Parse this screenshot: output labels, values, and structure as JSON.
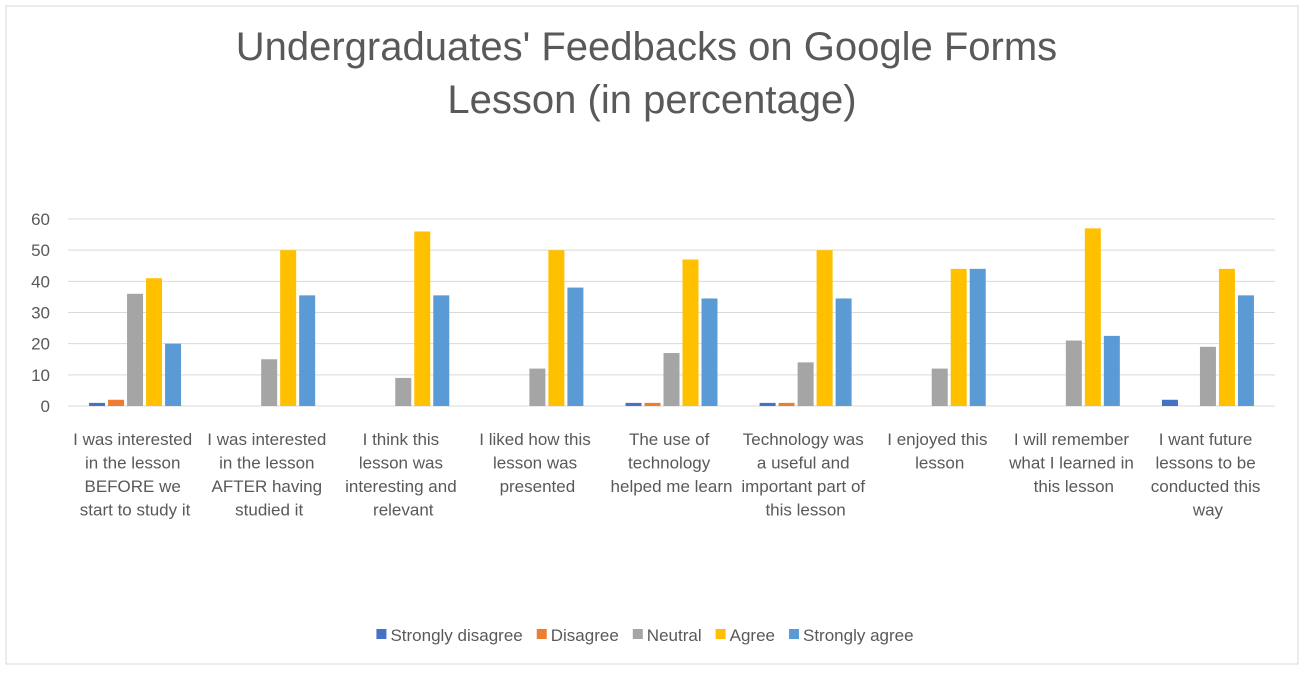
{
  "chart_data": {
    "type": "bar",
    "title": "Undergraduates' Feedbacks on Google Forms Lesson  (in percentage)",
    "categories": [
      "I was interested in the lesson BEFORE we start to study it",
      "I was interested in the lesson AFTER having studied it",
      "I think this lesson was interesting and relevant",
      "I liked how this lesson was presented",
      "The use of technology helped me learn",
      "Technology was a useful and important part of this lesson",
      "I enjoyed this lesson",
      "I will remember what I learned in this lesson",
      "I want future lessons to be conducted this way"
    ],
    "series": [
      {
        "name": "Strongly disagree",
        "color": "#4472c4",
        "values": [
          1,
          0,
          0,
          0,
          1,
          1,
          0,
          0,
          2
        ]
      },
      {
        "name": "Disagree",
        "color": "#ed7d31",
        "values": [
          2,
          0,
          0,
          0,
          1,
          1,
          0,
          0,
          0
        ]
      },
      {
        "name": "Neutral",
        "color": "#a5a5a5",
        "values": [
          36,
          15,
          9,
          12,
          17,
          14,
          12,
          21,
          19
        ]
      },
      {
        "name": "Agree",
        "color": "#ffc000",
        "values": [
          41,
          50,
          56,
          50,
          47,
          50,
          44,
          57,
          44
        ]
      },
      {
        "name": "Strongly agree",
        "color": "#5b9bd5",
        "values": [
          20,
          35.5,
          35.5,
          38,
          34.5,
          34.5,
          44,
          22.5,
          35.5
        ]
      }
    ],
    "ylim": [
      0,
      60
    ],
    "yticks": [
      0,
      10,
      20,
      30,
      40,
      50,
      60
    ],
    "grid": true,
    "legend": "bottom"
  }
}
